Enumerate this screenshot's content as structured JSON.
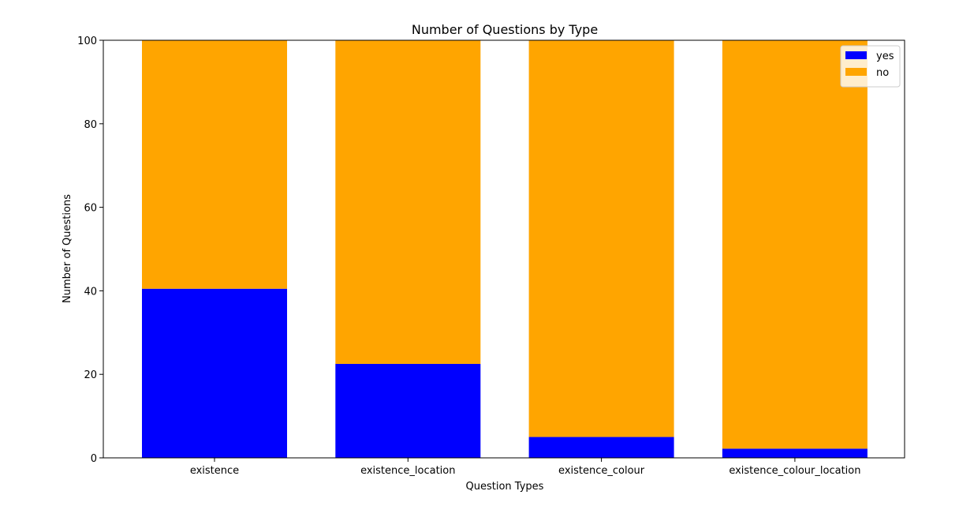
{
  "chart_data": {
    "type": "bar",
    "stacked": true,
    "title": "Number of Questions by Type",
    "xlabel": "Question Types",
    "ylabel": "Number of Questions",
    "categories": [
      "existence",
      "existence_location",
      "existence_colour",
      "existence_colour_location"
    ],
    "ylim": [
      0,
      100
    ],
    "yticks": [
      0,
      20,
      40,
      60,
      80,
      100
    ],
    "grid": false,
    "legend_position": "top-right",
    "series": [
      {
        "name": "yes",
        "color": "#0000ff",
        "values": [
          40.5,
          22.5,
          5,
          2.2
        ]
      },
      {
        "name": "no",
        "color": "#ffa500",
        "values": [
          59.5,
          77.5,
          95,
          97.8
        ]
      }
    ]
  }
}
